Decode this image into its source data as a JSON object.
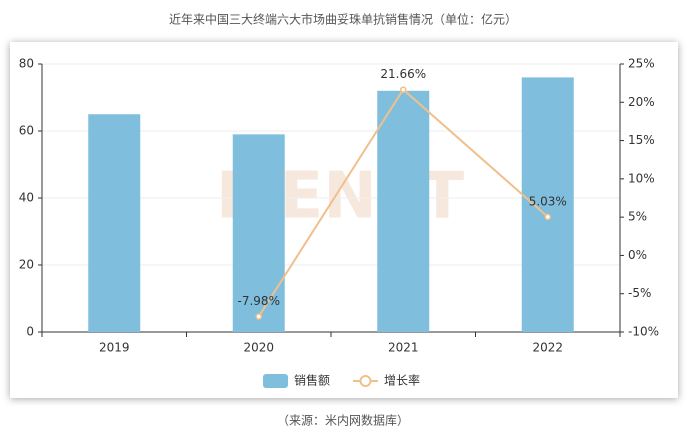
{
  "chart_data": {
    "type": "bar-line",
    "title": "近年来中国三大终端六大市场曲妥珠单抗销售情况（单位：亿元）",
    "source": "（来源：米内网数据库）",
    "watermark": "MENET",
    "categories": [
      "2019",
      "2020",
      "2021",
      "2022"
    ],
    "series": [
      {
        "name": "销售额",
        "type": "bar",
        "color": "#7fbfdd",
        "values": [
          65,
          59,
          72,
          76
        ]
      },
      {
        "name": "增长率",
        "type": "line",
        "axis": "y2",
        "color": "#f0c08c",
        "values": [
          null,
          -7.98,
          21.66,
          5.03
        ],
        "value_labels": [
          null,
          "-7.98%",
          "21.66%",
          "5.03%"
        ]
      }
    ],
    "ylim": [
      0,
      80
    ],
    "yticks": [
      0,
      20,
      40,
      60,
      80
    ],
    "y2lim": [
      -10,
      25
    ],
    "y2ticks": [
      {
        "value": -10,
        "label": "-10%"
      },
      {
        "value": -5,
        "label": "-5%"
      },
      {
        "value": 0,
        "label": "0%"
      },
      {
        "value": 5,
        "label": "5%"
      },
      {
        "value": 10,
        "label": "10%"
      },
      {
        "value": 15,
        "label": "15%"
      },
      {
        "value": 20,
        "label": "20%"
      },
      {
        "value": 25,
        "label": "25%"
      }
    ],
    "grid": true
  }
}
